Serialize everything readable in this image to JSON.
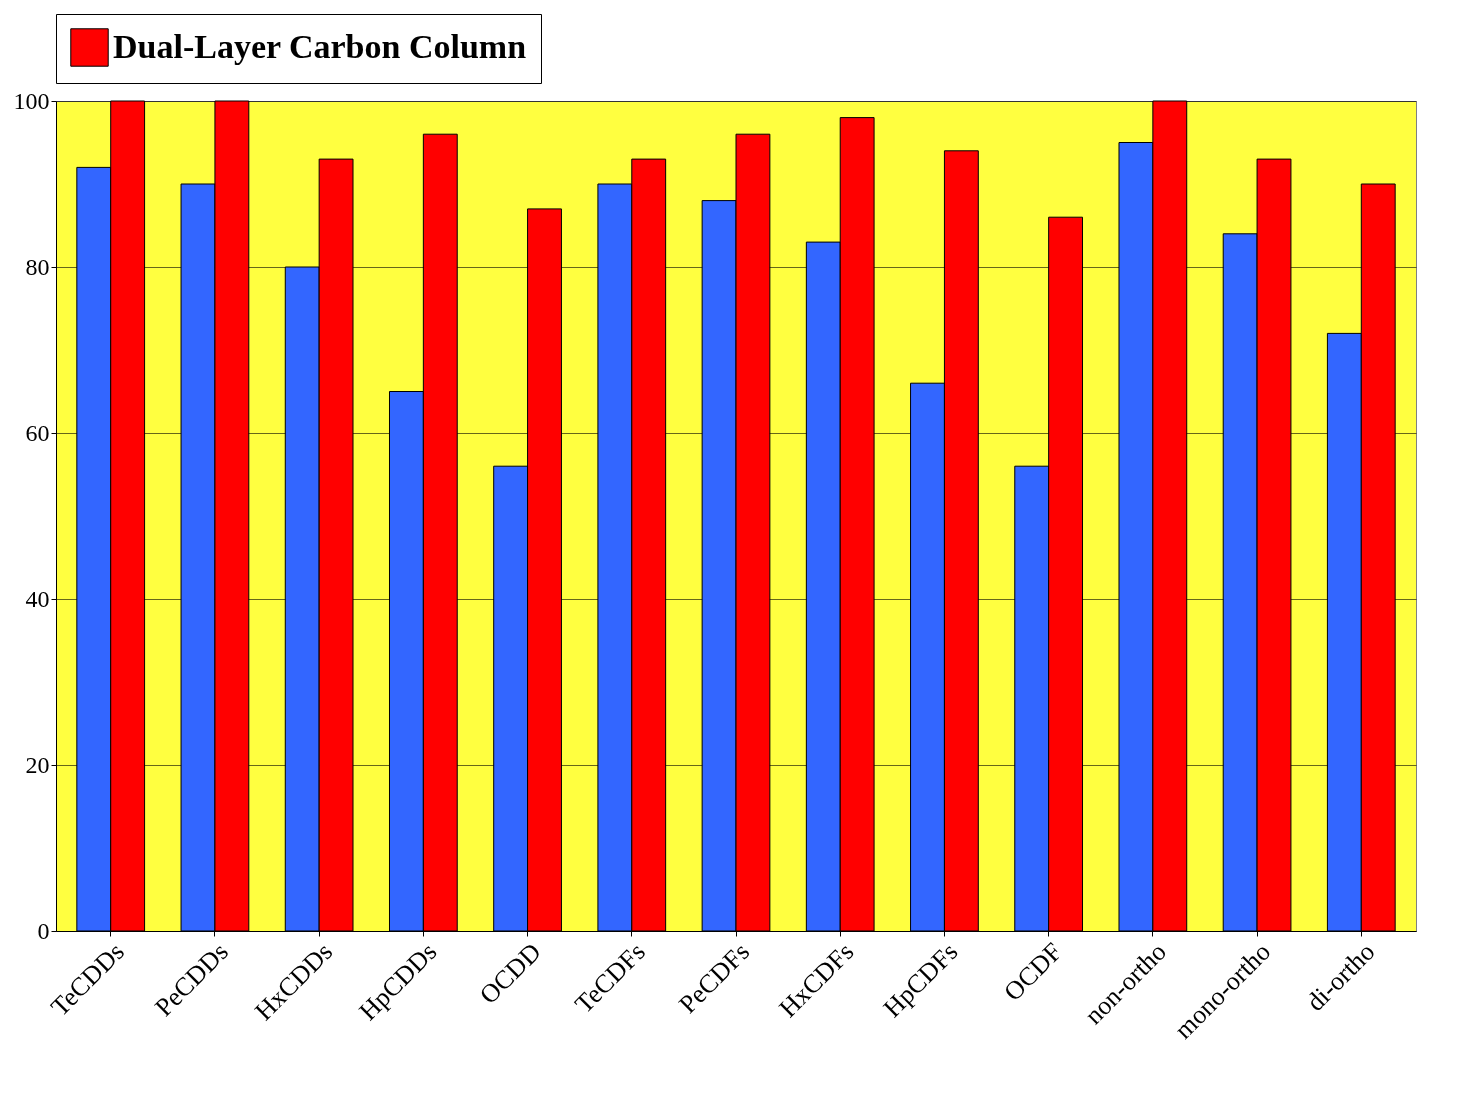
{
  "chart_data": {
    "type": "bar",
    "categories": [
      "TeCDDs",
      "PeCDDs",
      "HxCDDs",
      "HpCDDs",
      "OCDD",
      "TeCDFs",
      "PeCDFs",
      "HxCDFs",
      "HpCDFs",
      "OCDF",
      "non-ortho",
      "mono-ortho",
      "di-ortho"
    ],
    "series": [
      {
        "color": "#3366ff",
        "values": [
          92,
          90,
          80,
          65,
          56,
          90,
          88,
          83,
          66,
          56,
          95,
          84,
          72
        ]
      },
      {
        "name": "Dual-Layer Carbon Column",
        "color": "#ff0000",
        "values": [
          100,
          100,
          93,
          96,
          87,
          93,
          96,
          98,
          94,
          86,
          100,
          93,
          90
        ]
      }
    ],
    "ylim": [
      0,
      100
    ],
    "yticks": [
      0,
      20,
      40,
      60,
      80,
      100
    ],
    "grid": "y",
    "legend": "top"
  }
}
